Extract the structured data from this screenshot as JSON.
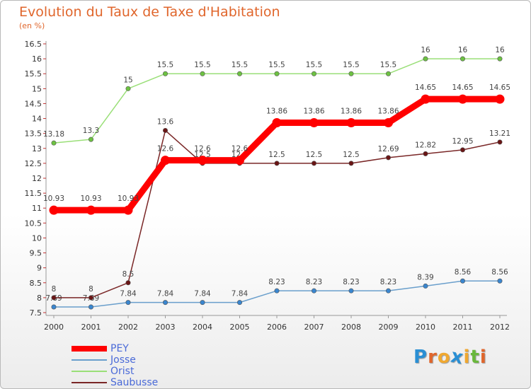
{
  "title": "Evolution du Taux de Taxe d'Habitation",
  "unit": "(en %)",
  "logo": {
    "letters": [
      "P",
      "r",
      "o",
      "x",
      "i",
      "t",
      "i"
    ],
    "colors": [
      "#2a8fd4",
      "#e0662c",
      "#f0a830",
      "#2a8fd4",
      "#f0a830",
      "#6ab83c",
      "#e0662c"
    ]
  },
  "chart_data": {
    "type": "line",
    "title": "Evolution du Taux de Taxe d'Habitation",
    "ylabel": "(en %)",
    "xlabel": "",
    "ylim": [
      7.5,
      16.5
    ],
    "ytick_step": 0.5,
    "grid": false,
    "legend_position": "bottom-left",
    "categories": [
      "2000",
      "2001",
      "2002",
      "2003",
      "2004",
      "2005",
      "2006",
      "2007",
      "2008",
      "2009",
      "2010",
      "2011",
      "2012"
    ],
    "series": [
      {
        "name": "PEY",
        "color": "#ff0000",
        "values": [
          10.93,
          10.93,
          10.93,
          12.6,
          12.6,
          12.6,
          13.86,
          13.86,
          13.86,
          13.86,
          14.65,
          14.65,
          14.65
        ],
        "labels": [
          "10.93",
          "10.93",
          "10.93",
          "12.6",
          "12.6",
          "12.6",
          "13.86",
          "13.86",
          "13.86",
          "13.86",
          "14.65",
          "14.65",
          "14.65"
        ]
      },
      {
        "name": "Josse",
        "color": "#6a9fcc",
        "marker": "#3a86cf",
        "values": [
          7.69,
          7.69,
          7.84,
          7.84,
          7.84,
          7.84,
          8.23,
          8.23,
          8.23,
          8.23,
          8.39,
          8.56,
          8.56
        ],
        "labels": [
          "7.69",
          "7.69",
          "7.84",
          "7.84",
          "7.84",
          "7.84",
          "8.23",
          "8.23",
          "8.23",
          "8.23",
          "8.39",
          "8.56",
          "8.56"
        ]
      },
      {
        "name": "Orist",
        "color": "#9adf78",
        "marker": "#6dc242",
        "values": [
          13.18,
          13.3,
          15,
          15.5,
          15.5,
          15.5,
          15.5,
          15.5,
          15.5,
          15.5,
          16,
          16,
          16
        ],
        "labels": [
          "13.18",
          "13.3",
          "15",
          "15.5",
          "15.5",
          "15.5",
          "15.5",
          "15.5",
          "15.5",
          "15.5",
          "16",
          "16",
          "16"
        ]
      },
      {
        "name": "Saubusse",
        "color": "#7a2727",
        "marker": "#6a1515",
        "values": [
          8,
          8,
          8.5,
          13.6,
          12.5,
          12.5,
          12.5,
          12.5,
          12.5,
          12.69,
          12.82,
          12.95,
          13.21
        ],
        "labels": [
          "8",
          "8",
          "8.5",
          "13.6",
          "12.5",
          "12.5",
          "12.5",
          "12.5",
          "12.5",
          "12.69",
          "12.82",
          "12.95",
          "13.21"
        ]
      }
    ]
  }
}
